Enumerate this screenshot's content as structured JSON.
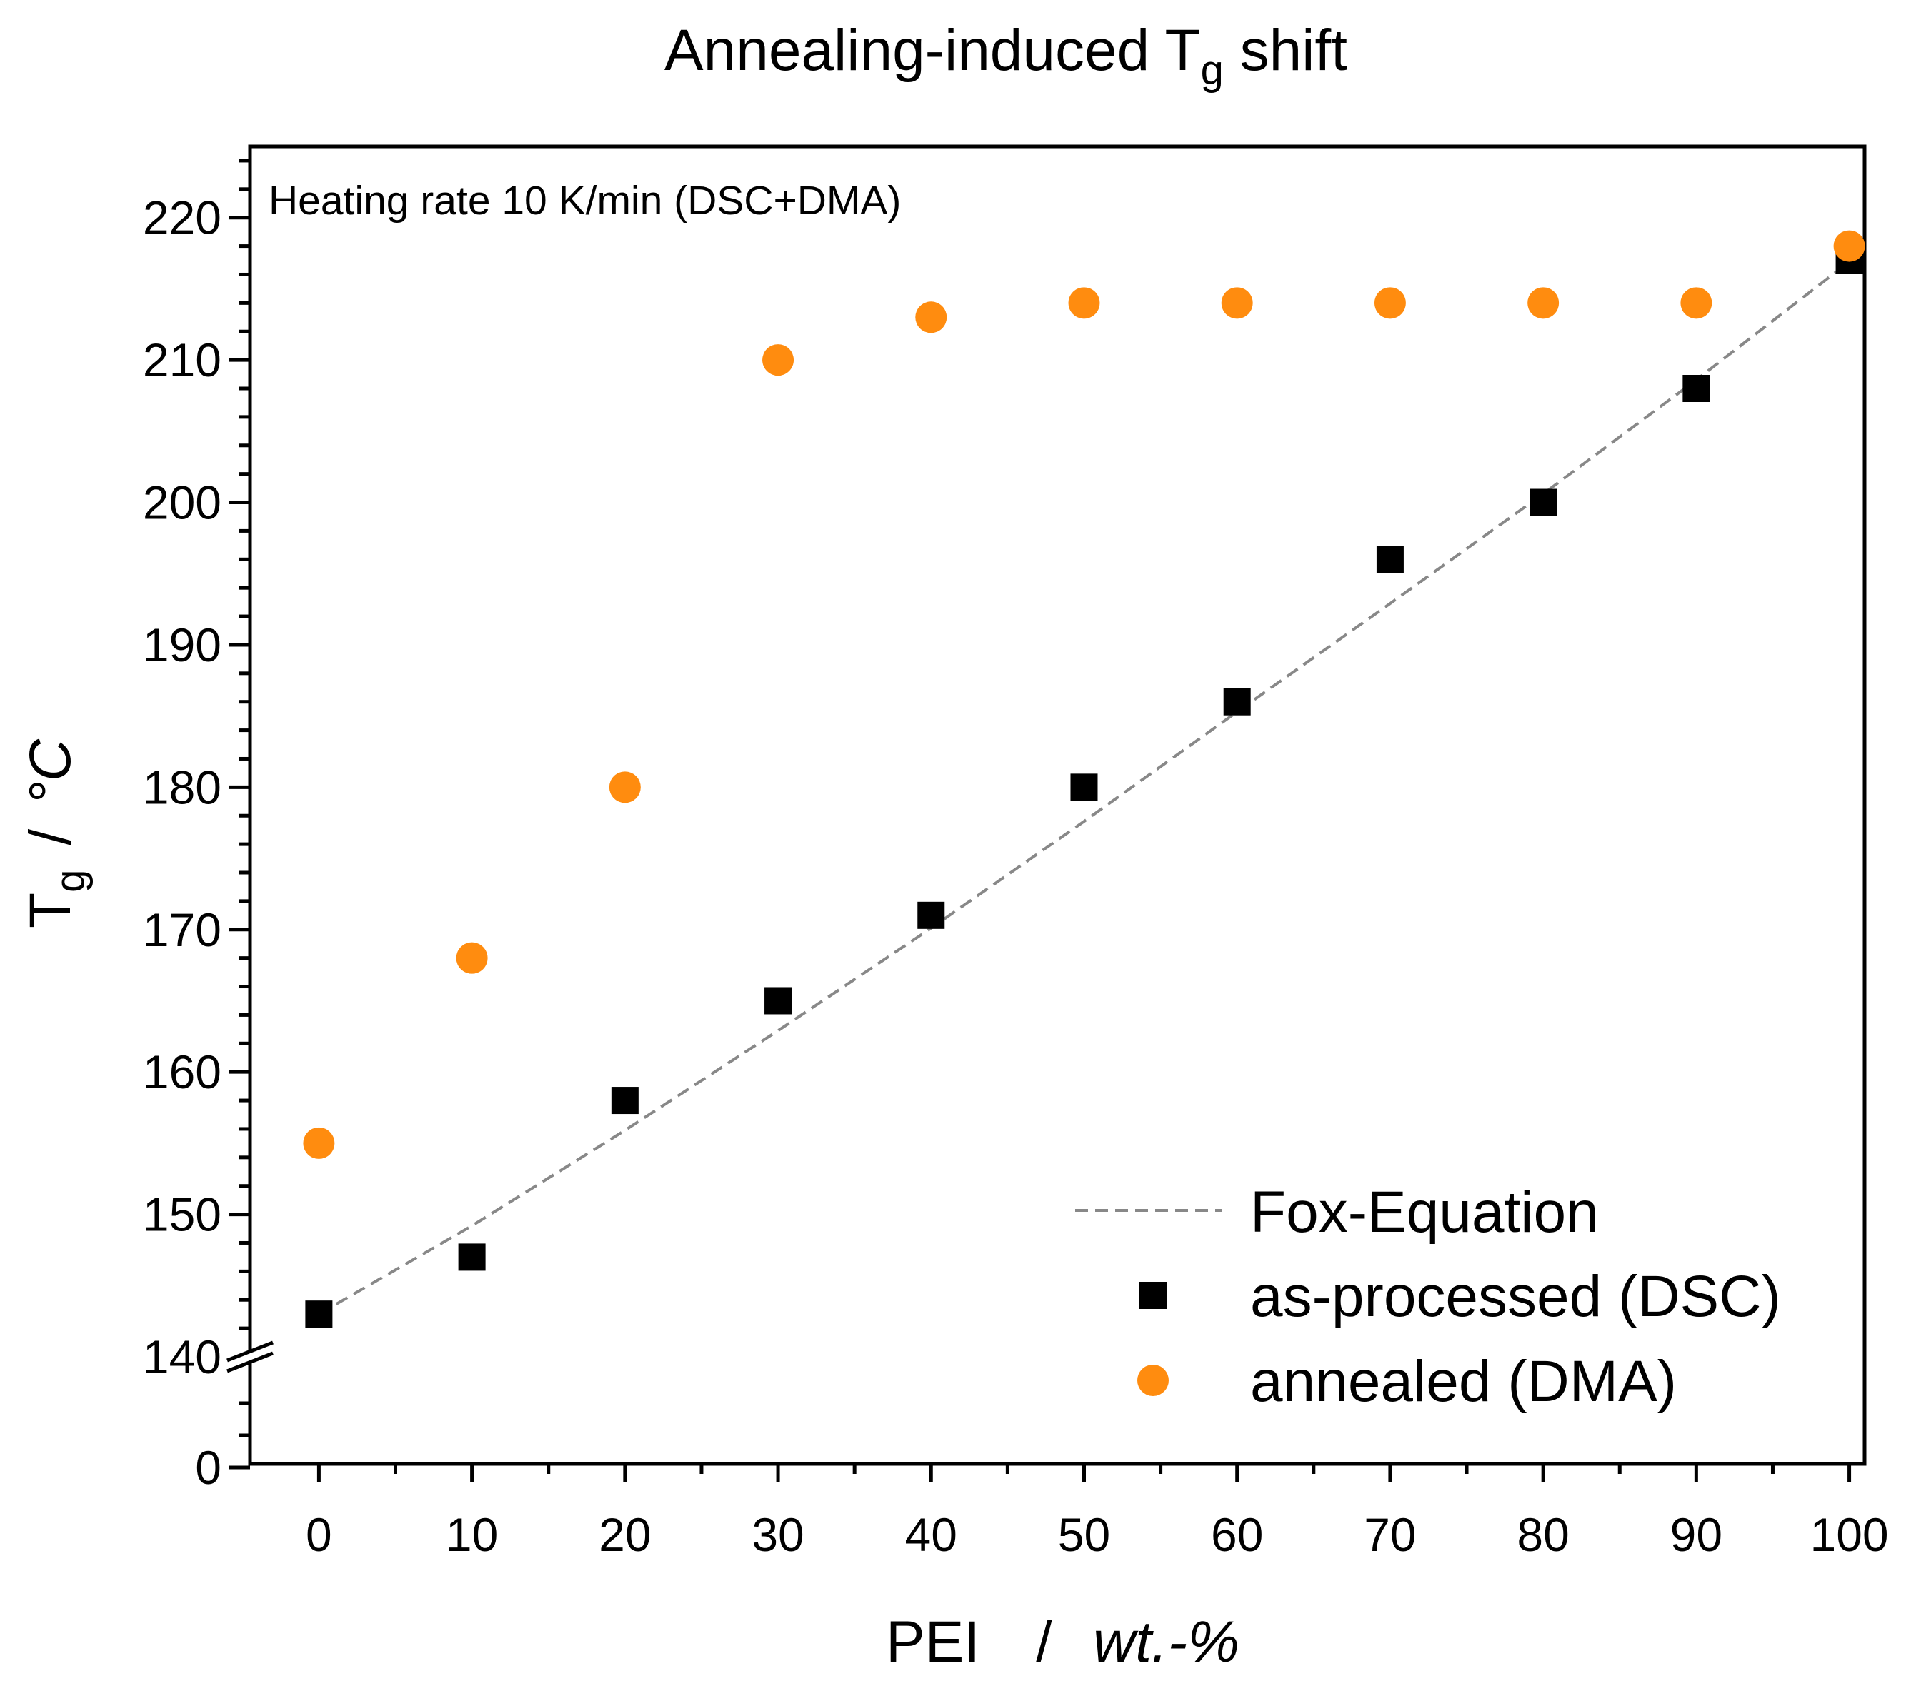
{
  "chart_data": {
    "type": "scatter",
    "title": "Annealing-induced T",
    "title_sub": "g",
    "title_suffix": " shift",
    "xlabel": "PEI",
    "xlabel_sep": "/",
    "xlabel_unit": "wt.-%",
    "ylabel": "T",
    "ylabel_sub": "g",
    "ylabel_sep": "/",
    "ylabel_unit": "°C",
    "annotation": "Heating rate 10 K/min (DSC+DMA)",
    "xlim": [
      -4.5,
      101
    ],
    "ylim_main": [
      140,
      225
    ],
    "ylim_break": [
      0,
      8
    ],
    "y_broken_axis": true,
    "x_ticks": [
      0,
      10,
      20,
      30,
      40,
      50,
      60,
      70,
      80,
      90,
      100
    ],
    "x_tick_labels": [
      "0",
      "10",
      "20",
      "30",
      "40",
      "50",
      "60",
      "70",
      "80",
      "90",
      "100"
    ],
    "y_ticks": [
      140,
      150,
      160,
      170,
      180,
      190,
      200,
      210,
      220
    ],
    "y_tick_labels": [
      "140",
      "150",
      "160",
      "170",
      "180",
      "190",
      "200",
      "210",
      "220"
    ],
    "y_break_tick": 0,
    "y_break_tick_label": "0",
    "series": [
      {
        "name": "Fox-Equation",
        "style": "dashed-line",
        "color": "#888888",
        "x": [
          0,
          10,
          20,
          30,
          40,
          50,
          60,
          70,
          80,
          90,
          100
        ],
        "y": [
          143.0,
          149.2,
          155.9,
          162.9,
          170.1,
          177.6,
          185.3,
          192.9,
          200.6,
          208.6,
          216.9
        ]
      },
      {
        "name": "as-processed (DSC)",
        "style": "square",
        "color": "#000000",
        "x": [
          0,
          10,
          20,
          30,
          40,
          50,
          60,
          70,
          80,
          90,
          100
        ],
        "y": [
          143,
          147,
          158,
          165,
          171,
          180,
          186,
          196,
          200,
          208,
          217
        ]
      },
      {
        "name": "annealed (DMA)",
        "style": "circle",
        "color": "#ff8c0f",
        "x": [
          0,
          10,
          20,
          30,
          40,
          50,
          60,
          70,
          80,
          90,
          100
        ],
        "y": [
          155,
          168,
          180,
          210,
          213,
          214,
          214,
          214,
          214,
          214,
          218
        ]
      }
    ],
    "legend_position": "bottom-right"
  }
}
